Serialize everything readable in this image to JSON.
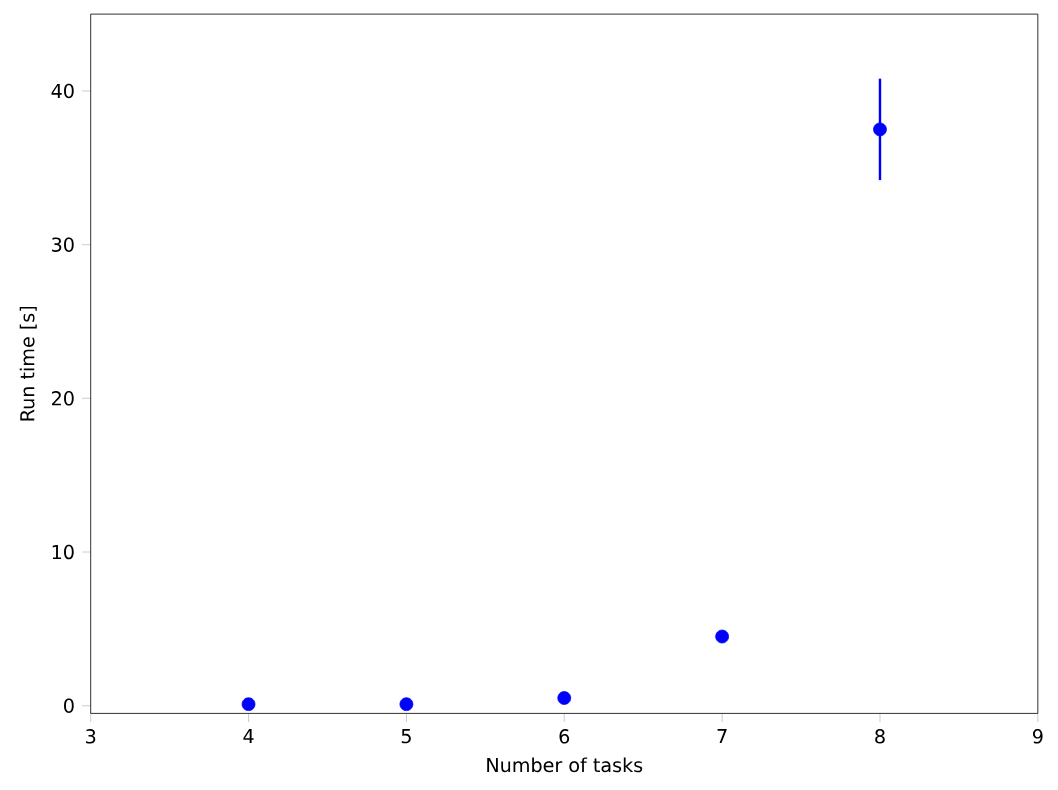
{
  "chart_data": {
    "type": "scatter",
    "xlabel": "Number of tasks",
    "ylabel": "Run time [s]",
    "x": [
      4,
      5,
      6,
      7,
      8
    ],
    "series": [
      {
        "color": "#0000ff",
        "values": [
          0.1,
          0.1,
          0.5,
          4.5,
          37.5
        ],
        "errors": [
          null,
          null,
          null,
          null,
          3.3
        ]
      }
    ],
    "marker": "circle",
    "xlim": [
      3,
      9
    ],
    "xticks": [
      3,
      4,
      5,
      6,
      7,
      8,
      9
    ],
    "ylim": [
      -0.5,
      45
    ],
    "yticks": [
      0,
      10,
      20,
      30,
      40
    ]
  }
}
